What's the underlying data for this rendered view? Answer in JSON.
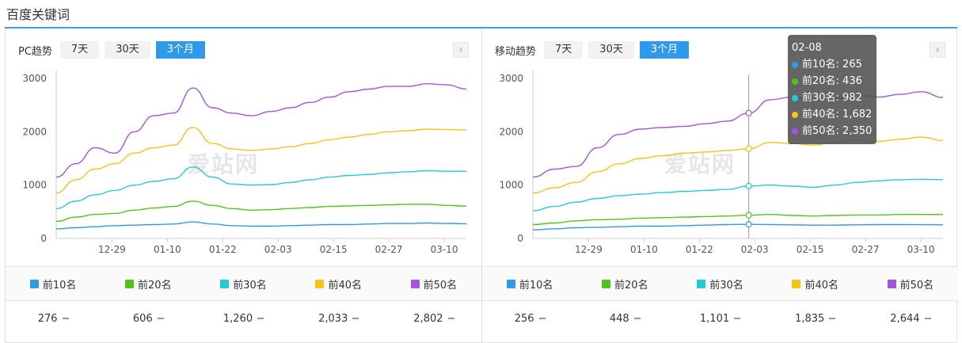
{
  "page_title": "百度关键词",
  "colors": {
    "accent": "#2f9ae9",
    "series": [
      "#2e9be6",
      "#52c41a",
      "#22cdd2",
      "#f7c21a",
      "#a454e0"
    ]
  },
  "watermark": "爱站网",
  "range_buttons": [
    "7天",
    "30天",
    "3个月"
  ],
  "active_range": "3个月",
  "next_icon": "chevron-right-icon",
  "legend": [
    "前10名",
    "前20名",
    "前30名",
    "前40名",
    "前50名"
  ],
  "panels": {
    "pc": {
      "name": "PC趋势",
      "totals": [
        "276",
        "606",
        "1,260",
        "2,033",
        "2,802"
      ]
    },
    "mobile": {
      "name": "移动趋势",
      "totals": [
        "256",
        "448",
        "1,101",
        "1,835",
        "2,644"
      ],
      "tooltip": {
        "date": "02-08",
        "rows": [
          "前10名: 265",
          "前20名: 436",
          "前30名: 982",
          "前40名: 1,682",
          "前50名: 2,350"
        ]
      }
    }
  },
  "chart_data": [
    {
      "type": "line",
      "x_ticks": [
        "12-29",
        "01-10",
        "01-22",
        "02-03",
        "02-15",
        "02-27",
        "03-10"
      ],
      "ylim": [
        0,
        3000
      ],
      "y_ticks": [
        0,
        1000,
        2000,
        3000
      ],
      "grid": false,
      "series": [
        {
          "name": "前10名",
          "values": [
            180,
            200,
            220,
            240,
            250,
            260,
            270,
            310,
            270,
            240,
            230,
            230,
            240,
            250,
            260,
            260,
            270,
            280,
            280,
            290,
            280,
            276
          ]
        },
        {
          "name": "前20名",
          "values": [
            320,
            400,
            450,
            470,
            530,
            570,
            600,
            700,
            620,
            560,
            530,
            540,
            560,
            580,
            600,
            610,
            620,
            630,
            640,
            640,
            620,
            606
          ]
        },
        {
          "name": "前30名",
          "values": [
            560,
            700,
            820,
            900,
            1000,
            1070,
            1120,
            1340,
            1150,
            1020,
            1000,
            1010,
            1050,
            1100,
            1150,
            1180,
            1200,
            1230,
            1250,
            1270,
            1260,
            1260
          ]
        },
        {
          "name": "前40名",
          "values": [
            850,
            1100,
            1300,
            1400,
            1600,
            1700,
            1750,
            2080,
            1780,
            1680,
            1650,
            1680,
            1720,
            1780,
            1850,
            1900,
            1950,
            2000,
            2020,
            2050,
            2040,
            2033
          ]
        },
        {
          "name": "前50名",
          "values": [
            1150,
            1400,
            1700,
            1600,
            2000,
            2300,
            2350,
            2820,
            2450,
            2350,
            2300,
            2380,
            2450,
            2550,
            2650,
            2750,
            2800,
            2850,
            2850,
            2900,
            2880,
            2802
          ]
        }
      ]
    },
    {
      "type": "line",
      "x_ticks": [
        "12-29",
        "01-10",
        "01-22",
        "02-03",
        "02-15",
        "02-27",
        "03-10"
      ],
      "ylim": [
        0,
        3000
      ],
      "y_ticks": [
        0,
        1000,
        2000,
        3000
      ],
      "grid": false,
      "series": [
        {
          "name": "前10名",
          "values": [
            160,
            180,
            200,
            210,
            220,
            230,
            230,
            240,
            250,
            260,
            265,
            260,
            255,
            250,
            250,
            255,
            260,
            260,
            258,
            256
          ]
        },
        {
          "name": "前20名",
          "values": [
            260,
            290,
            330,
            350,
            360,
            380,
            390,
            400,
            410,
            420,
            436,
            450,
            430,
            420,
            430,
            440,
            440,
            450,
            450,
            448
          ]
        },
        {
          "name": "前30名",
          "values": [
            520,
            600,
            680,
            750,
            800,
            830,
            860,
            880,
            900,
            920,
            982,
            1000,
            980,
            960,
            1000,
            1050,
            1080,
            1100,
            1110,
            1101
          ]
        },
        {
          "name": "前40名",
          "values": [
            850,
            950,
            1050,
            1250,
            1400,
            1500,
            1550,
            1600,
            1620,
            1650,
            1682,
            1800,
            1780,
            1750,
            1800,
            1850,
            1820,
            1860,
            1900,
            1835
          ]
        },
        {
          "name": "前50名",
          "values": [
            1150,
            1300,
            1350,
            1700,
            1950,
            2050,
            2080,
            2100,
            2150,
            2200,
            2350,
            2600,
            2650,
            2600,
            2620,
            2700,
            2650,
            2700,
            2750,
            2644
          ]
        }
      ],
      "highlight": {
        "x": "02-08",
        "values": [
          265,
          436,
          982,
          1682,
          2350
        ]
      }
    }
  ]
}
